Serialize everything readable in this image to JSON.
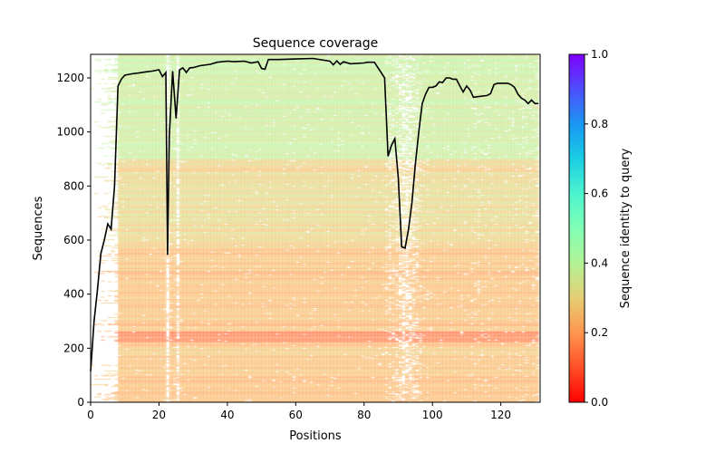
{
  "chart_data": {
    "type": "heatmap",
    "title": "Sequence coverage",
    "xlabel": "Positions",
    "ylabel": "Sequences",
    "xlim": [
      0,
      131.5
    ],
    "ylim": [
      0,
      1287
    ],
    "xticks": [
      0,
      20,
      40,
      60,
      80,
      100,
      120
    ],
    "yticks": [
      0,
      200,
      400,
      600,
      800,
      1000,
      1200
    ],
    "colorbar": {
      "label": "Sequence identity to query",
      "range": [
        0,
        1
      ],
      "ticks": [
        "0.0",
        "0.2",
        "0.4",
        "0.6",
        "0.8",
        "1.0"
      ],
      "colormap": "rainbow_r"
    },
    "identity_bands": [
      {
        "from": 0,
        "to": 220,
        "identity": 0.25
      },
      {
        "from": 220,
        "to": 260,
        "identity": 0.15
      },
      {
        "from": 260,
        "to": 580,
        "identity": 0.25
      },
      {
        "from": 580,
        "to": 900,
        "identity": 0.3
      },
      {
        "from": 900,
        "to": 1287,
        "identity": 0.37
      }
    ],
    "coverage_line": {
      "color": "#000000",
      "x": [
        0,
        1,
        2,
        3,
        4,
        5,
        6,
        7,
        8,
        9,
        10,
        12,
        14,
        16,
        18,
        20,
        21,
        22,
        22.5,
        23,
        24,
        25,
        26,
        27,
        28,
        29,
        30,
        32,
        35,
        37,
        40,
        42,
        45,
        47,
        49,
        50,
        51,
        52,
        55,
        60,
        65,
        70,
        71,
        72,
        73,
        74,
        76,
        80,
        81,
        83,
        86,
        87,
        88,
        89,
        90,
        91,
        92,
        93,
        94,
        95,
        96,
        97,
        98,
        99,
        100,
        101,
        102,
        103,
        104,
        105,
        106,
        107,
        108,
        109,
        110,
        111,
        112,
        113,
        116,
        117,
        118,
        119,
        122,
        123,
        124,
        125,
        126,
        127,
        128,
        129,
        130,
        131
      ],
      "y": [
        115,
        300,
        415,
        550,
        600,
        660,
        640,
        800,
        1170,
        1195,
        1210,
        1215,
        1218,
        1222,
        1225,
        1230,
        1205,
        1220,
        545,
        985,
        1225,
        1050,
        1230,
        1237,
        1220,
        1237,
        1238,
        1245,
        1250,
        1258,
        1262,
        1260,
        1262,
        1255,
        1260,
        1235,
        1232,
        1268,
        1268,
        1270,
        1272,
        1262,
        1248,
        1263,
        1250,
        1260,
        1252,
        1255,
        1258,
        1258,
        1200,
        910,
        950,
        975,
        830,
        575,
        570,
        640,
        740,
        880,
        1000,
        1105,
        1140,
        1165,
        1165,
        1170,
        1185,
        1183,
        1200,
        1200,
        1195,
        1195,
        1170,
        1148,
        1170,
        1155,
        1128,
        1130,
        1135,
        1142,
        1175,
        1180,
        1180,
        1175,
        1165,
        1140,
        1125,
        1118,
        1105,
        1118,
        1105,
        1105
      ]
    }
  }
}
